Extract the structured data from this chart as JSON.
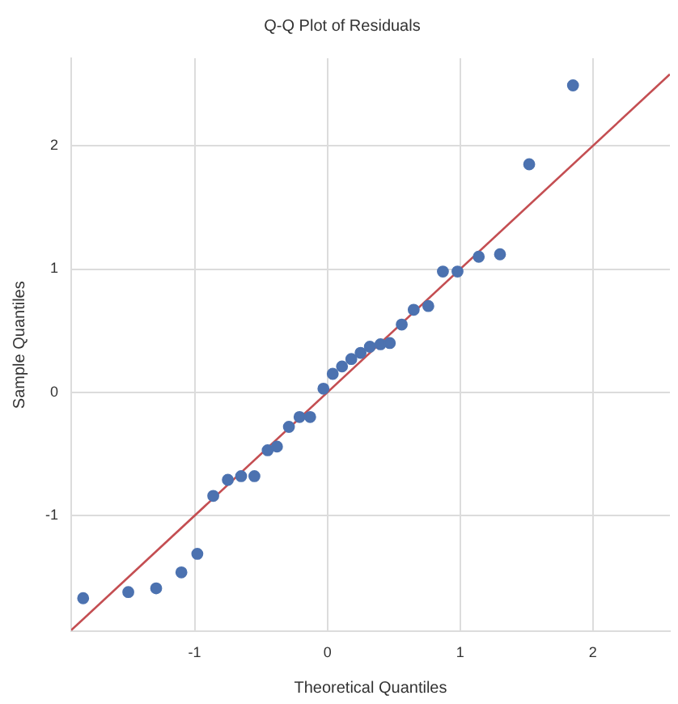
{
  "chart_data": {
    "type": "scatter",
    "title": "Q-Q Plot of Residuals",
    "xlabel": "Theoretical Quantiles",
    "ylabel": "Sample Quantiles",
    "x": [
      -1.84,
      -1.5,
      -1.29,
      -1.1,
      -0.98,
      -0.86,
      -0.75,
      -0.65,
      -0.55,
      -0.45,
      -0.38,
      -0.29,
      -0.21,
      -0.13,
      -0.03,
      0.04,
      0.11,
      0.18,
      0.25,
      0.32,
      0.4,
      0.47,
      0.56,
      0.65,
      0.76,
      0.87,
      0.98,
      1.14,
      1.3,
      1.52,
      1.85
    ],
    "series": [
      {
        "type": "scatter",
        "marker": "circle",
        "color": "#4c72b0",
        "values": [
          -1.67,
          -1.62,
          -1.59,
          -1.46,
          -1.31,
          -0.84,
          -0.71,
          -0.68,
          -0.68,
          -0.47,
          -0.44,
          -0.28,
          -0.2,
          -0.2,
          0.03,
          0.15,
          0.21,
          0.27,
          0.32,
          0.37,
          0.39,
          0.4,
          0.55,
          0.67,
          0.7,
          0.98,
          0.98,
          1.1,
          1.12,
          1.85,
          2.49
        ]
      },
      {
        "type": "line",
        "marker": "none",
        "color": "#c44e52",
        "x": [
          -1.93,
          2.58
        ],
        "values": [
          -1.93,
          2.58
        ]
      }
    ],
    "xlim": [
      -1.93,
      2.58
    ],
    "ylim": [
      -1.94,
      2.71
    ],
    "xticks": [
      -1,
      0,
      1,
      2
    ],
    "yticks": [
      -1,
      0,
      1,
      2
    ],
    "grid": true
  }
}
